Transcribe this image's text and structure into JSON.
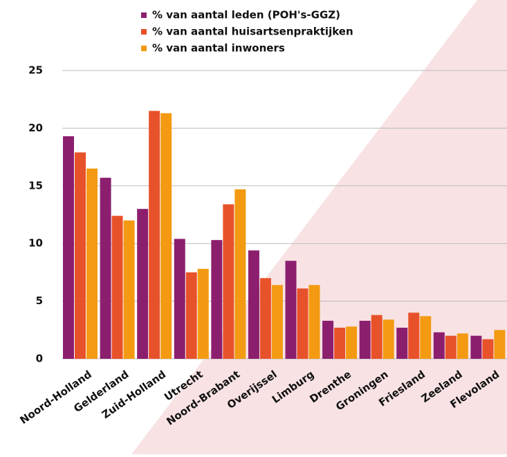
{
  "chart_data": {
    "type": "bar",
    "categories": [
      "Noord-Holland",
      "Gelderland",
      "Zuid-Holland",
      "Utrecht",
      "Noord-Brabant",
      "Overijssel",
      "Limburg",
      "Drenthe",
      "Groningen",
      "Friesland",
      "Zeeland",
      "Flevoland"
    ],
    "series": [
      {
        "name": "% van aantal leden (POH's-GGZ)",
        "color": "#8b1f6e",
        "values": [
          19.3,
          15.7,
          13.0,
          10.4,
          10.3,
          9.4,
          8.5,
          3.3,
          3.3,
          2.7,
          2.3,
          2.0
        ]
      },
      {
        "name": "% van aantal huisartsenpraktijken",
        "color": "#e8522a",
        "values": [
          17.9,
          12.4,
          21.5,
          7.5,
          13.4,
          7.0,
          6.1,
          2.7,
          3.8,
          4.0,
          2.0,
          1.7
        ]
      },
      {
        "name": "% van aantal inwoners",
        "color": "#f39a12",
        "values": [
          16.5,
          12.0,
          21.3,
          7.8,
          14.7,
          6.4,
          6.4,
          2.8,
          3.4,
          3.7,
          2.2,
          2.5
        ]
      }
    ],
    "ylim": [
      0,
      25
    ],
    "yticks": [
      0,
      5,
      10,
      15,
      20,
      25
    ],
    "grid": true,
    "legend": "top"
  }
}
